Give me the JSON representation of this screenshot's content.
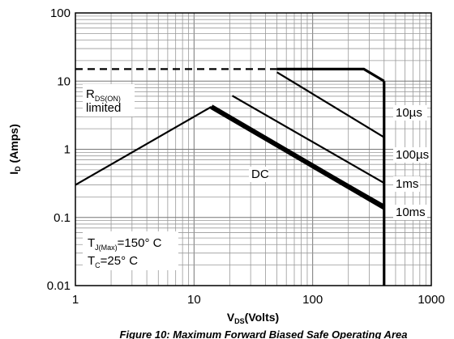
{
  "chart_data": {
    "type": "line",
    "scale": {
      "x": "log",
      "y": "log"
    },
    "xlim": [
      1,
      1000
    ],
    "ylim": [
      0.01,
      100
    ],
    "grid": true,
    "x_ticks": [
      "1",
      "10",
      "100",
      "1000"
    ],
    "y_ticks": [
      "100",
      "10",
      "1",
      "0.1",
      "0.01"
    ],
    "xlabel": {
      "main": "V",
      "sub": "DS",
      "rest": "(Volts)"
    },
    "ylabel": {
      "main": "I",
      "sub": "D",
      "rest": " (Amps)"
    },
    "caption": "Figure 10: Maximum Forward Biased Safe Operating Area",
    "limit_label": {
      "line1_main": "R",
      "line1_sub": "DS(ON)",
      "line2": "limited"
    },
    "conditions": [
      {
        "main": "T",
        "sub": "J(Max)",
        "rest": "=150° C"
      },
      {
        "main": "T",
        "sub": "C",
        "rest": "=25° C"
      }
    ],
    "rdson_line": {
      "x": [
        1,
        14
      ],
      "y": [
        0.3,
        4.2
      ]
    },
    "current_limit_dashed": {
      "x": [
        1,
        50
      ],
      "y": [
        15,
        15
      ]
    },
    "series": [
      {
        "name": "10µs",
        "x": [
          50,
          270,
          400
        ],
        "y": [
          15,
          15,
          10
        ]
      },
      {
        "name": "100µs",
        "x": [
          50,
          400
        ],
        "y": [
          13.5,
          1.5
        ]
      },
      {
        "name": "1ms",
        "x": [
          21,
          400
        ],
        "y": [
          6.1,
          0.32
        ]
      },
      {
        "name": "10ms",
        "x": [
          14,
          400
        ],
        "y": [
          4.2,
          0.15
        ]
      },
      {
        "name": "DC",
        "x": [
          14,
          400
        ],
        "y": [
          4.2,
          0.14
        ]
      }
    ],
    "vds_limit": {
      "x": 400,
      "y_range": [
        0.01,
        10
      ]
    }
  }
}
